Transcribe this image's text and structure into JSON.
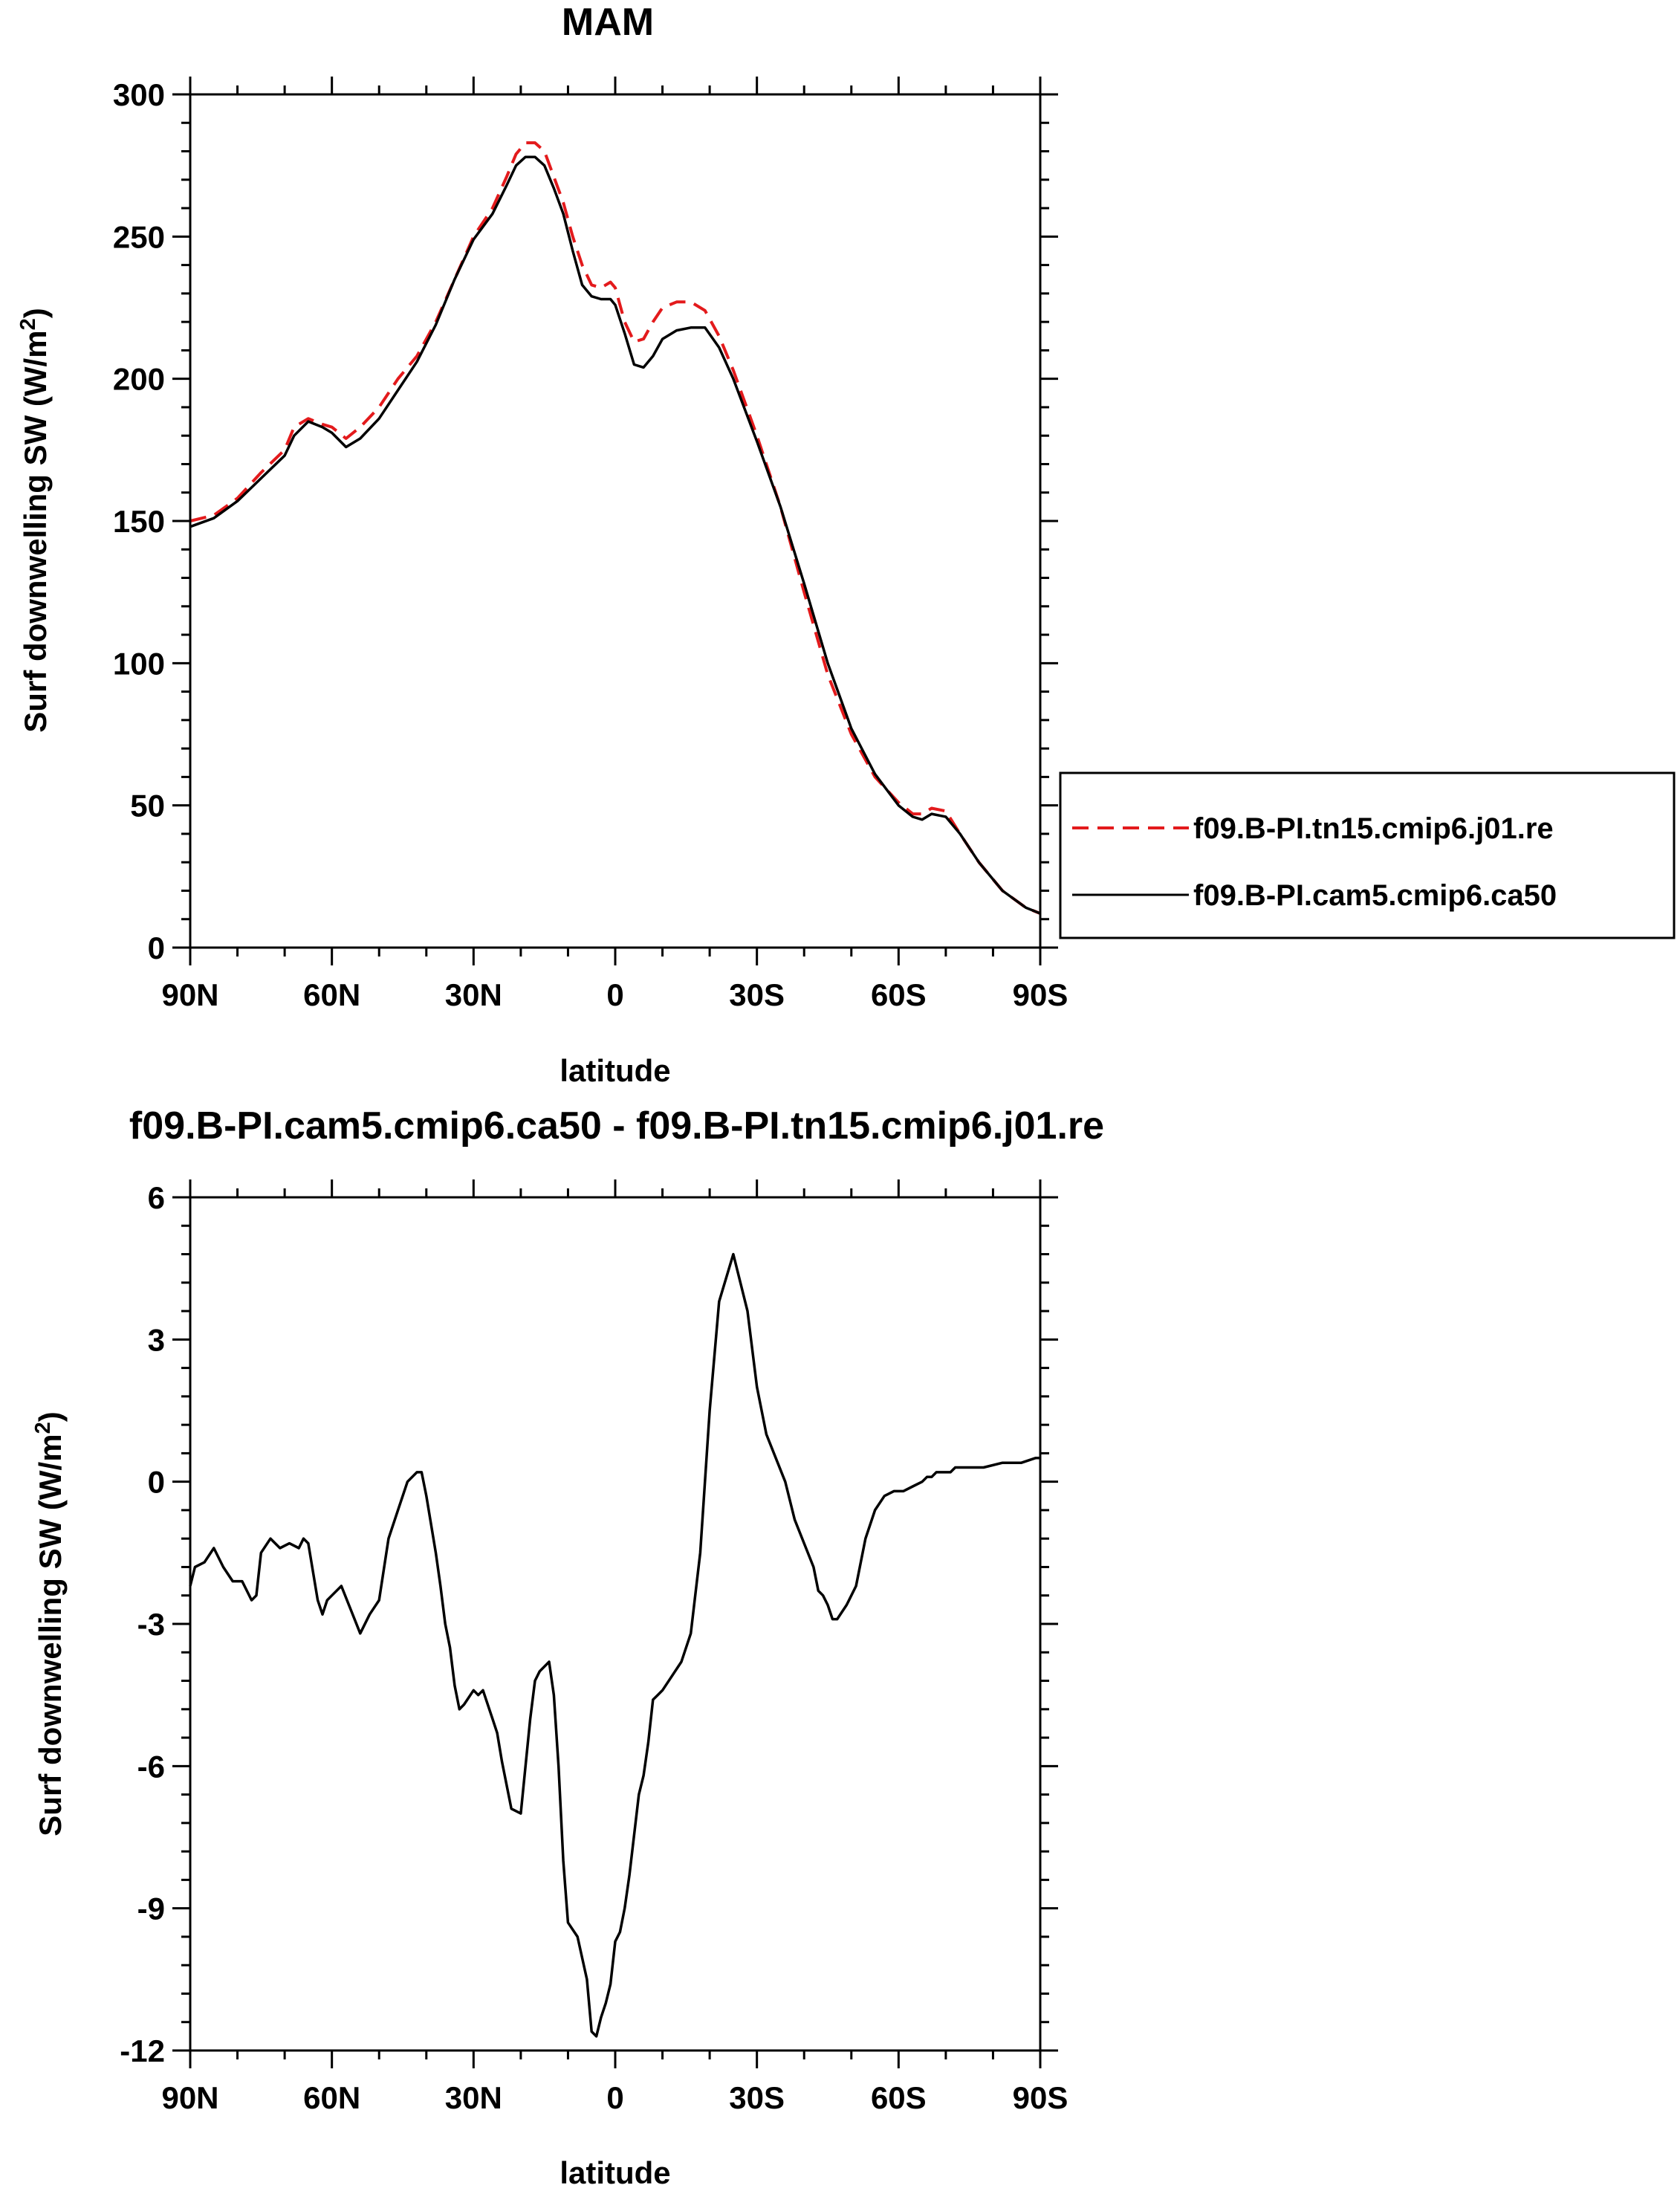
{
  "chart_data": [
    {
      "type": "line",
      "title": "MAM",
      "xlabel": "latitude",
      "ylabel": "Surf downwelling SW (W/m²)",
      "ylabel_main": "Surf downwelling SW (W/m",
      "ylabel_sup": "2",
      "ylabel_end": ")",
      "xlim": [
        90,
        -90
      ],
      "ylim": [
        0,
        300
      ],
      "x_ticks": [
        90,
        60,
        30,
        0,
        -30,
        -60,
        -90
      ],
      "x_tick_labels": [
        "90N",
        "60N",
        "30N",
        "0",
        "30S",
        "60S",
        "90S"
      ],
      "y_ticks": [
        0,
        50,
        100,
        150,
        200,
        250,
        300
      ],
      "y_tick_labels": [
        "0",
        "50",
        "100",
        "150",
        "200",
        "250",
        "300"
      ],
      "grid": false,
      "legend": "right",
      "series": [
        {
          "name": "f09.B-PI.tn15.cmip6.j01.re",
          "color": "#e31a1c",
          "dash": "dashed",
          "x": [
            90,
            85,
            80,
            75,
            70,
            68,
            65,
            62,
            60,
            57,
            54,
            50,
            46,
            42,
            38,
            34,
            30,
            26,
            23,
            21,
            19,
            17,
            15,
            13,
            11,
            9,
            7,
            5,
            3,
            1,
            0,
            -2,
            -4,
            -6,
            -8,
            -10,
            -13,
            -16,
            -19,
            -22,
            -25,
            -30,
            -35,
            -40,
            -45,
            -50,
            -55,
            -60,
            -63,
            -65,
            -67,
            -70,
            -73,
            -77,
            -82,
            -87,
            -90
          ],
          "y": [
            150,
            152,
            158,
            167,
            175,
            183,
            186,
            184,
            183,
            179,
            183,
            190,
            200,
            208,
            220,
            235,
            250,
            260,
            271,
            279,
            283,
            283,
            280,
            271,
            262,
            250,
            240,
            233,
            232,
            234,
            232,
            220,
            213,
            214,
            220,
            225,
            227,
            227,
            224,
            215,
            203,
            180,
            155,
            125,
            96,
            75,
            60,
            51,
            47,
            47,
            49,
            48,
            40,
            30,
            20,
            14,
            12
          ]
        },
        {
          "name": "f09.B-PI.cam5.cmip6.ca50",
          "color": "#000000",
          "dash": "solid",
          "x": [
            90,
            85,
            80,
            75,
            70,
            68,
            65,
            62,
            60,
            57,
            54,
            50,
            46,
            42,
            38,
            34,
            30,
            26,
            23,
            21,
            19,
            17,
            15,
            13,
            11,
            9,
            7,
            5,
            3,
            1,
            0,
            -2,
            -4,
            -6,
            -8,
            -10,
            -13,
            -16,
            -19,
            -22,
            -25,
            -30,
            -35,
            -40,
            -45,
            -50,
            -55,
            -60,
            -63,
            -65,
            -67,
            -70,
            -73,
            -77,
            -82,
            -87,
            -90
          ],
          "y": [
            148,
            151,
            157,
            165,
            173,
            180,
            185,
            183,
            181,
            176,
            179,
            186,
            196,
            206,
            219,
            235,
            249,
            258,
            268,
            275,
            278,
            278,
            275,
            267,
            258,
            245,
            233,
            229,
            228,
            228,
            226,
            216,
            205,
            204,
            208,
            214,
            217,
            218,
            218,
            211,
            200,
            178,
            155,
            128,
            100,
            77,
            61,
            50,
            46,
            45,
            47,
            46,
            40,
            30,
            20,
            14,
            12
          ]
        }
      ]
    },
    {
      "type": "line",
      "title": "f09.B-PI.cam5.cmip6.ca50 - f09.B-PI.tn15.cmip6.j01.re",
      "xlabel": "latitude",
      "ylabel": "Surf downwelling SW (W/m²)",
      "ylabel_main": "Surf downwelling SW (W/m",
      "ylabel_sup": "2",
      "ylabel_end": ")",
      "xlim": [
        90,
        -90
      ],
      "ylim": [
        -12,
        6
      ],
      "x_ticks": [
        90,
        60,
        30,
        0,
        -30,
        -60,
        -90
      ],
      "x_tick_labels": [
        "90N",
        "60N",
        "30N",
        "0",
        "30S",
        "60S",
        "90S"
      ],
      "y_ticks": [
        -12,
        -9,
        -6,
        -3,
        0,
        3,
        6
      ],
      "y_tick_labels": [
        "-12",
        "-9",
        "-6",
        "-3",
        "0",
        "3",
        "6"
      ],
      "grid": false,
      "series": [
        {
          "color": "#000000",
          "dash": "solid",
          "x": [
            90,
            89,
            87,
            85,
            83,
            81,
            79,
            77,
            76,
            75,
            73,
            71,
            69,
            67,
            66,
            65,
            63,
            62,
            61,
            60,
            58,
            56,
            54,
            52,
            50,
            48,
            46,
            44,
            42,
            41,
            40,
            38,
            37,
            36,
            35,
            34,
            33,
            32,
            30,
            29,
            28,
            26,
            25,
            24,
            22,
            20,
            18,
            17,
            16,
            14,
            13,
            12,
            11,
            10,
            8,
            6,
            5,
            4,
            3,
            2,
            1,
            0,
            -1,
            -2,
            -3,
            -5,
            -6,
            -7,
            -8,
            -9,
            -10,
            -12,
            -14,
            -16,
            -18,
            -20,
            -22,
            -25,
            -28,
            -30,
            -32,
            -34,
            -36,
            -38,
            -40,
            -42,
            -43,
            -44,
            -45,
            -46,
            -47,
            -49,
            -51,
            -53,
            -55,
            -57,
            -59,
            -61,
            -63,
            -65,
            -66,
            -67,
            -68,
            -69,
            -71,
            -72,
            -73,
            -74,
            -76,
            -78,
            -82,
            -86,
            -89,
            -90
          ],
          "y": [
            -2.2,
            -1.8,
            -1.7,
            -1.4,
            -1.8,
            -2.1,
            -2.1,
            -2.5,
            -2.4,
            -1.5,
            -1.2,
            -1.4,
            -1.3,
            -1.4,
            -1.2,
            -1.3,
            -2.5,
            -2.8,
            -2.5,
            -2.4,
            -2.2,
            -2.7,
            -3.2,
            -2.8,
            -2.5,
            -1.2,
            -0.6,
            0.0,
            0.2,
            0.2,
            -0.3,
            -1.5,
            -2.2,
            -3.0,
            -3.5,
            -4.3,
            -4.8,
            -4.7,
            -4.4,
            -4.5,
            -4.4,
            -5.0,
            -5.3,
            -5.9,
            -6.9,
            -7.0,
            -5.0,
            -4.2,
            -4.0,
            -3.8,
            -4.5,
            -6.0,
            -8.0,
            -9.3,
            -9.6,
            -10.5,
            -11.6,
            -11.7,
            -11.3,
            -11.0,
            -10.6,
            -9.7,
            -9.5,
            -9.0,
            -8.3,
            -6.6,
            -6.2,
            -5.5,
            -4.6,
            -4.5,
            -4.4,
            -4.1,
            -3.8,
            -3.2,
            -1.5,
            1.5,
            3.8,
            4.8,
            3.6,
            2.0,
            1.0,
            0.5,
            0.0,
            -0.8,
            -1.3,
            -1.8,
            -2.3,
            -2.4,
            -2.6,
            -2.9,
            -2.9,
            -2.6,
            -2.2,
            -1.2,
            -0.6,
            -0.3,
            -0.2,
            -0.2,
            -0.1,
            0.0,
            0.1,
            0.1,
            0.2,
            0.2,
            0.2,
            0.3,
            0.3,
            0.3,
            0.3,
            0.3,
            0.4,
            0.4,
            0.5,
            0.5
          ]
        }
      ]
    }
  ]
}
